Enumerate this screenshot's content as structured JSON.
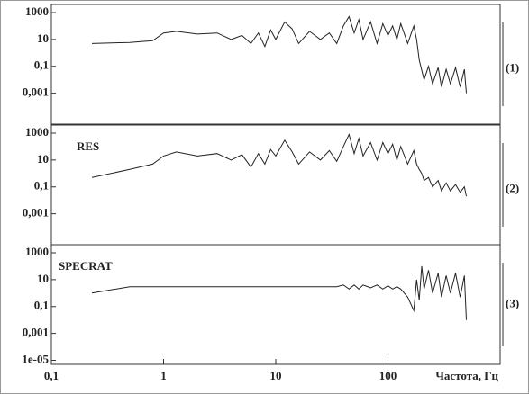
{
  "chart_data": [
    {
      "type": "line",
      "panel_label": "(1)",
      "x": [
        0.23,
        0.5,
        0.8,
        1,
        1.3,
        2,
        3,
        4,
        5,
        6,
        7,
        8,
        9,
        10,
        12,
        14,
        16,
        20,
        25,
        30,
        35,
        40,
        45,
        50,
        55,
        60,
        70,
        80,
        90,
        100,
        110,
        120,
        130,
        150,
        170,
        180,
        190,
        200,
        210,
        230,
        250,
        280,
        300,
        330,
        360,
        400,
        440,
        480,
        500
      ],
      "series": [
        {
          "name": null,
          "color": "#222222",
          "values": [
            5,
            6,
            8,
            30,
            40,
            25,
            30,
            10,
            20,
            5,
            30,
            3,
            50,
            10,
            200,
            60,
            5,
            40,
            10,
            30,
            5,
            100,
            500,
            30,
            300,
            10,
            200,
            5,
            150,
            20,
            100,
            10,
            150,
            5,
            100,
            10,
            0.3,
            0.05,
            0.01,
            0.1,
            0.005,
            0.08,
            0.003,
            0.06,
            0.005,
            0.08,
            0.003,
            0.06,
            0.001
          ]
        }
      ],
      "xlim": [
        0.1,
        1000
      ],
      "ylim": [
        5e-06,
        4000
      ],
      "yticks": [
        1000,
        10,
        {
          "value": 0.1,
          "label": "0,1"
        },
        {
          "value": 0.001,
          "label": "0,001"
        }
      ]
    },
    {
      "type": "line",
      "panel_label": "(2)",
      "annotation": "RES",
      "x": [
        0.23,
        0.5,
        0.8,
        1,
        1.3,
        2,
        3,
        4,
        5,
        6,
        7,
        8,
        9,
        10,
        12,
        14,
        16,
        20,
        25,
        30,
        35,
        40,
        45,
        50,
        55,
        60,
        70,
        80,
        90,
        100,
        110,
        120,
        130,
        150,
        170,
        180,
        190,
        200,
        210,
        230,
        250,
        280,
        300,
        330,
        360,
        400,
        440,
        480,
        500
      ],
      "series": [
        {
          "name": null,
          "color": "#222222",
          "values": [
            0.5,
            2,
            5,
            20,
            40,
            20,
            30,
            10,
            25,
            3,
            30,
            5,
            60,
            20,
            300,
            40,
            5,
            40,
            10,
            50,
            8,
            100,
            800,
            30,
            400,
            20,
            200,
            10,
            200,
            30,
            150,
            10,
            100,
            5,
            50,
            5,
            2,
            1,
            0.3,
            0.5,
            0.1,
            0.3,
            0.05,
            0.2,
            0.05,
            0.15,
            0.04,
            0.1,
            0.02
          ]
        }
      ],
      "xlim": [
        0.1,
        1000
      ],
      "ylim": [
        5e-06,
        4000
      ],
      "yticks": [
        1000,
        10,
        {
          "value": 0.1,
          "label": "0,1"
        },
        {
          "value": 0.001,
          "label": "0,001"
        }
      ]
    },
    {
      "type": "line",
      "panel_label": "(3)",
      "annotation": "SPECRAT",
      "x": [
        0.23,
        0.5,
        0.8,
        1,
        1.3,
        2,
        3,
        4,
        5,
        6,
        7,
        8,
        9,
        10,
        12,
        14,
        16,
        20,
        25,
        30,
        35,
        40,
        45,
        50,
        55,
        60,
        70,
        80,
        90,
        100,
        110,
        120,
        130,
        150,
        170,
        180,
        190,
        200,
        210,
        230,
        250,
        280,
        300,
        330,
        360,
        400,
        440,
        480,
        500
      ],
      "series": [
        {
          "name": null,
          "color": "#222222",
          "values": [
            1,
            3,
            3,
            3,
            3,
            3,
            3,
            3,
            3,
            3,
            3,
            3,
            3,
            3,
            3,
            3,
            3,
            3,
            3,
            3,
            3,
            4,
            2,
            4,
            2,
            4,
            2.5,
            4,
            2,
            3.5,
            2,
            3,
            2,
            0.5,
            0.05,
            10,
            0.3,
            100,
            2,
            50,
            1,
            30,
            0.5,
            20,
            1,
            30,
            0.5,
            20,
            0.01
          ]
        }
      ],
      "xlim": [
        0.1,
        1000
      ],
      "ylim": [
        5e-06,
        4000
      ],
      "yticks": [
        1000,
        10,
        {
          "value": 0.1,
          "label": "0,1"
        },
        {
          "value": 0.001,
          "label": "0,001"
        },
        {
          "value": 1e-05,
          "label": "1e-05"
        }
      ],
      "xticks": [
        {
          "value": 0.1,
          "label": "0,1"
        },
        1,
        10,
        100
      ],
      "xlabel": "Частота, Гц"
    }
  ]
}
